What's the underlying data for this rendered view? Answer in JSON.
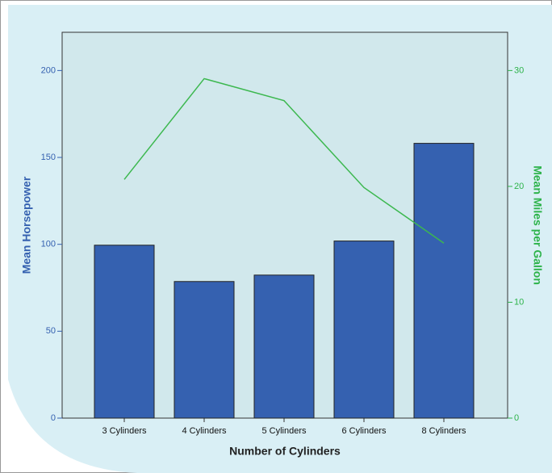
{
  "chart_data": {
    "type": "bar",
    "xlabel": "Number of Cylinders",
    "ylabel": "Mean Horsepower",
    "y2label": "Mean Miles per Gallon",
    "categories": [
      "3 Cylinders",
      "4 Cylinders",
      "5 Cylinders",
      "6 Cylinders",
      "8 Cylinders"
    ],
    "series": [
      {
        "type": "bar",
        "color": "#3561b0",
        "values": [
          99.5,
          78.6,
          82.3,
          101.9,
          158.1
        ]
      },
      {
        "type": "line",
        "color": "#3cb84f",
        "axis": "y2",
        "values": [
          20.6,
          29.3,
          27.4,
          19.9,
          15.1
        ]
      }
    ],
    "ylim": [
      0,
      222
    ],
    "yticks": [
      0,
      50,
      100,
      150,
      200
    ],
    "ytick_color": "#3561b0",
    "y2lim": [
      0,
      33.3
    ],
    "y2ticks": [
      0,
      10,
      20,
      30
    ],
    "y2tick_color": "#2db34a"
  }
}
